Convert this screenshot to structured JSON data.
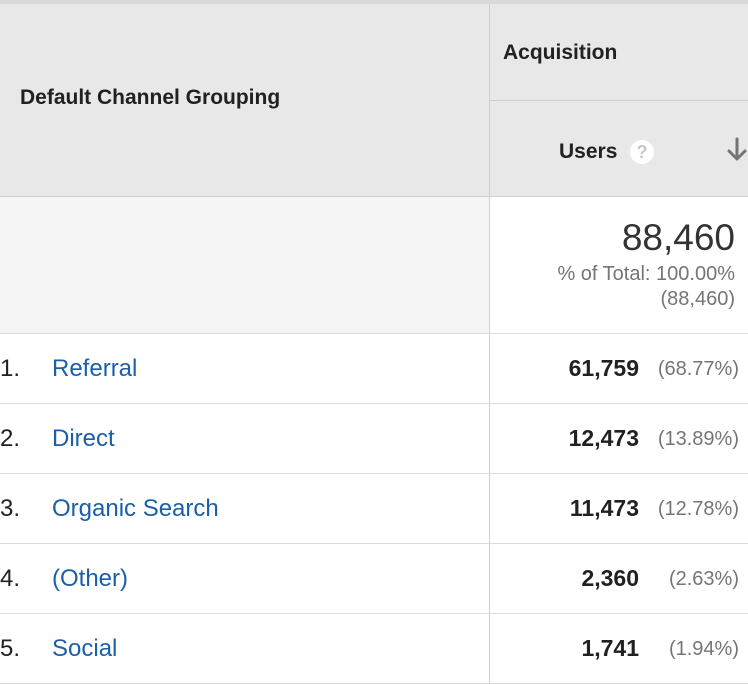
{
  "header": {
    "dimension_label": "Default Channel Grouping",
    "metric_group": "Acquisition",
    "metric_label": "Users",
    "help_glyph": "?",
    "sort": "descending"
  },
  "totals": {
    "value": "88,460",
    "percent_of_total": "% of Total: 100.00%",
    "absolute_total": "(88,460)"
  },
  "rows": [
    {
      "rank": "1.",
      "channel": "Referral",
      "users": "61,759",
      "percent": "(68.77%)"
    },
    {
      "rank": "2.",
      "channel": "Direct",
      "users": "12,473",
      "percent": "(13.89%)"
    },
    {
      "rank": "3.",
      "channel": "Organic Search",
      "users": "11,473",
      "percent": "(12.78%)"
    },
    {
      "rank": "4.",
      "channel": "(Other)",
      "users": "2,360",
      "percent": "(2.63%)"
    },
    {
      "rank": "5.",
      "channel": "Social",
      "users": "1,741",
      "percent": "(1.94%)"
    }
  ],
  "colors": {
    "header_bg": "#e8e8e8",
    "link": "#1a5fa8",
    "muted": "#757575"
  }
}
